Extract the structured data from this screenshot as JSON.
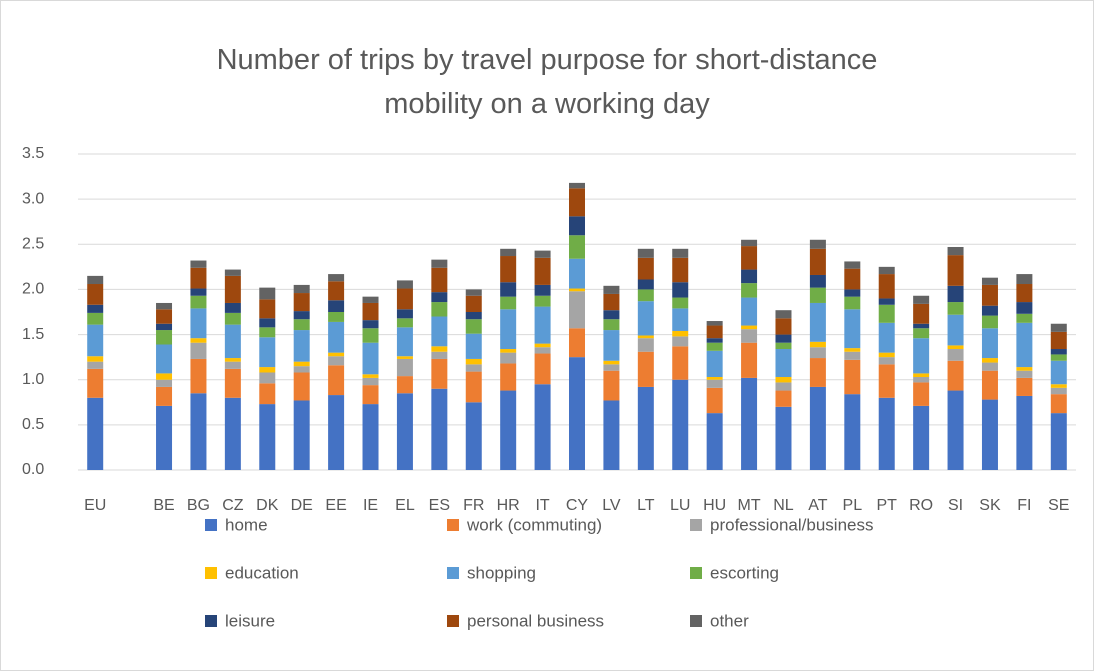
{
  "chart_data": {
    "type": "stacked_bar",
    "title": "Number of trips by travel purpose for short-distance mobility on a working day",
    "categories": [
      "EU",
      null,
      "BE",
      "BG",
      "CZ",
      "DK",
      "DE",
      "EE",
      "IE",
      "EL",
      "ES",
      "FR",
      "HR",
      "IT",
      "CY",
      "LV",
      "LT",
      "LU",
      "HU",
      "MT",
      "NL",
      "AT",
      "PL",
      "PT",
      "RO",
      "SI",
      "SK",
      "FI",
      "SE"
    ],
    "series": [
      {
        "name": "home",
        "color": "#4472c4",
        "values": [
          0.8,
          null,
          0.71,
          0.85,
          0.8,
          0.73,
          0.77,
          0.83,
          0.73,
          0.85,
          0.9,
          0.75,
          0.88,
          0.95,
          1.25,
          0.77,
          0.92,
          1.0,
          0.63,
          1.02,
          0.7,
          0.92,
          0.84,
          0.8,
          0.71,
          0.88,
          0.78,
          0.82,
          0.63
        ]
      },
      {
        "name": "work (commuting)",
        "color": "#ed7d31",
        "values": [
          0.32,
          null,
          0.21,
          0.38,
          0.32,
          0.23,
          0.31,
          0.33,
          0.21,
          0.19,
          0.33,
          0.34,
          0.3,
          0.34,
          0.32,
          0.33,
          0.39,
          0.37,
          0.28,
          0.39,
          0.18,
          0.32,
          0.38,
          0.37,
          0.26,
          0.33,
          0.32,
          0.2,
          0.21
        ]
      },
      {
        "name": "professional/business",
        "color": "#a5a5a5",
        "values": [
          0.08,
          null,
          0.08,
          0.18,
          0.08,
          0.12,
          0.07,
          0.1,
          0.08,
          0.19,
          0.08,
          0.08,
          0.12,
          0.07,
          0.41,
          0.07,
          0.15,
          0.11,
          0.09,
          0.15,
          0.09,
          0.12,
          0.09,
          0.08,
          0.06,
          0.13,
          0.09,
          0.08,
          0.07
        ]
      },
      {
        "name": "education",
        "color": "#ffc000",
        "values": [
          0.06,
          null,
          0.07,
          0.05,
          0.04,
          0.06,
          0.05,
          0.04,
          0.04,
          0.03,
          0.06,
          0.06,
          0.04,
          0.04,
          0.03,
          0.04,
          0.03,
          0.06,
          0.03,
          0.04,
          0.06,
          0.06,
          0.04,
          0.05,
          0.04,
          0.04,
          0.05,
          0.04,
          0.04
        ]
      },
      {
        "name": "shopping",
        "color": "#5b9bd5",
        "values": [
          0.35,
          null,
          0.32,
          0.33,
          0.37,
          0.33,
          0.35,
          0.34,
          0.35,
          0.32,
          0.33,
          0.28,
          0.44,
          0.41,
          0.33,
          0.34,
          0.38,
          0.25,
          0.29,
          0.31,
          0.31,
          0.43,
          0.43,
          0.33,
          0.39,
          0.34,
          0.33,
          0.49,
          0.26
        ]
      },
      {
        "name": "escorting",
        "color": "#70ad47",
        "values": [
          0.13,
          null,
          0.16,
          0.14,
          0.13,
          0.11,
          0.12,
          0.11,
          0.16,
          0.1,
          0.16,
          0.16,
          0.14,
          0.12,
          0.26,
          0.12,
          0.13,
          0.12,
          0.09,
          0.16,
          0.07,
          0.17,
          0.14,
          0.2,
          0.11,
          0.14,
          0.14,
          0.1,
          0.07
        ]
      },
      {
        "name": "leisure",
        "color": "#264478",
        "values": [
          0.09,
          null,
          0.07,
          0.08,
          0.11,
          0.1,
          0.09,
          0.13,
          0.09,
          0.1,
          0.11,
          0.08,
          0.16,
          0.12,
          0.21,
          0.1,
          0.11,
          0.17,
          0.05,
          0.15,
          0.09,
          0.14,
          0.08,
          0.07,
          0.05,
          0.18,
          0.11,
          0.13,
          0.06
        ]
      },
      {
        "name": "personal business",
        "color": "#9e480e",
        "values": [
          0.23,
          null,
          0.16,
          0.23,
          0.3,
          0.21,
          0.2,
          0.21,
          0.19,
          0.23,
          0.27,
          0.18,
          0.29,
          0.3,
          0.31,
          0.18,
          0.24,
          0.27,
          0.14,
          0.26,
          0.18,
          0.29,
          0.23,
          0.27,
          0.22,
          0.34,
          0.23,
          0.2,
          0.19
        ]
      },
      {
        "name": "other",
        "color": "#636363",
        "values": [
          0.09,
          null,
          0.07,
          0.08,
          0.07,
          0.13,
          0.09,
          0.08,
          0.07,
          0.09,
          0.09,
          0.07,
          0.08,
          0.08,
          0.06,
          0.09,
          0.1,
          0.1,
          0.05,
          0.07,
          0.09,
          0.1,
          0.08,
          0.08,
          0.09,
          0.09,
          0.08,
          0.11,
          0.09
        ]
      }
    ],
    "ylim": [
      0,
      3.5
    ],
    "yticks": [
      {
        "value": 0,
        "label": "0.0"
      },
      {
        "value": 0.5,
        "label": "0.5"
      },
      {
        "value": 1,
        "label": "1.0"
      },
      {
        "value": 1.5,
        "label": "1.5"
      },
      {
        "value": 2,
        "label": "2.0"
      },
      {
        "value": 2.5,
        "label": "2.5"
      },
      {
        "value": 3,
        "label": "3.0"
      },
      {
        "value": 3.5,
        "label": "3.5"
      }
    ],
    "grid": true,
    "legend": "bottom"
  }
}
